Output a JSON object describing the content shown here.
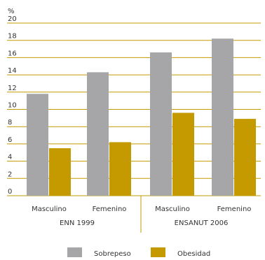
{
  "chart_data": {
    "type": "bar",
    "unit_label": "%",
    "yticks": [
      "20",
      "18",
      "16",
      "14",
      "12",
      "10",
      "8",
      "6",
      "4",
      "2",
      "0"
    ],
    "ylim": [
      0,
      20
    ],
    "grid": true,
    "categories": [
      "Masculino",
      "Femenino",
      "Masculino",
      "Femenino"
    ],
    "groups": [
      {
        "label": "ENN 1999"
      },
      {
        "label": "ENSANUT 2006"
      }
    ],
    "series": [
      {
        "name": "Sobrepeso",
        "color": "#a6a6a8",
        "values": [
          11.8,
          14.3,
          16.6,
          18.2
        ]
      },
      {
        "name": "Obesidad",
        "color": "#c49a00",
        "values": [
          5.5,
          6.2,
          9.6,
          8.9
        ]
      }
    ],
    "grid_color": "#c49a00",
    "legend_position": "bottom"
  }
}
